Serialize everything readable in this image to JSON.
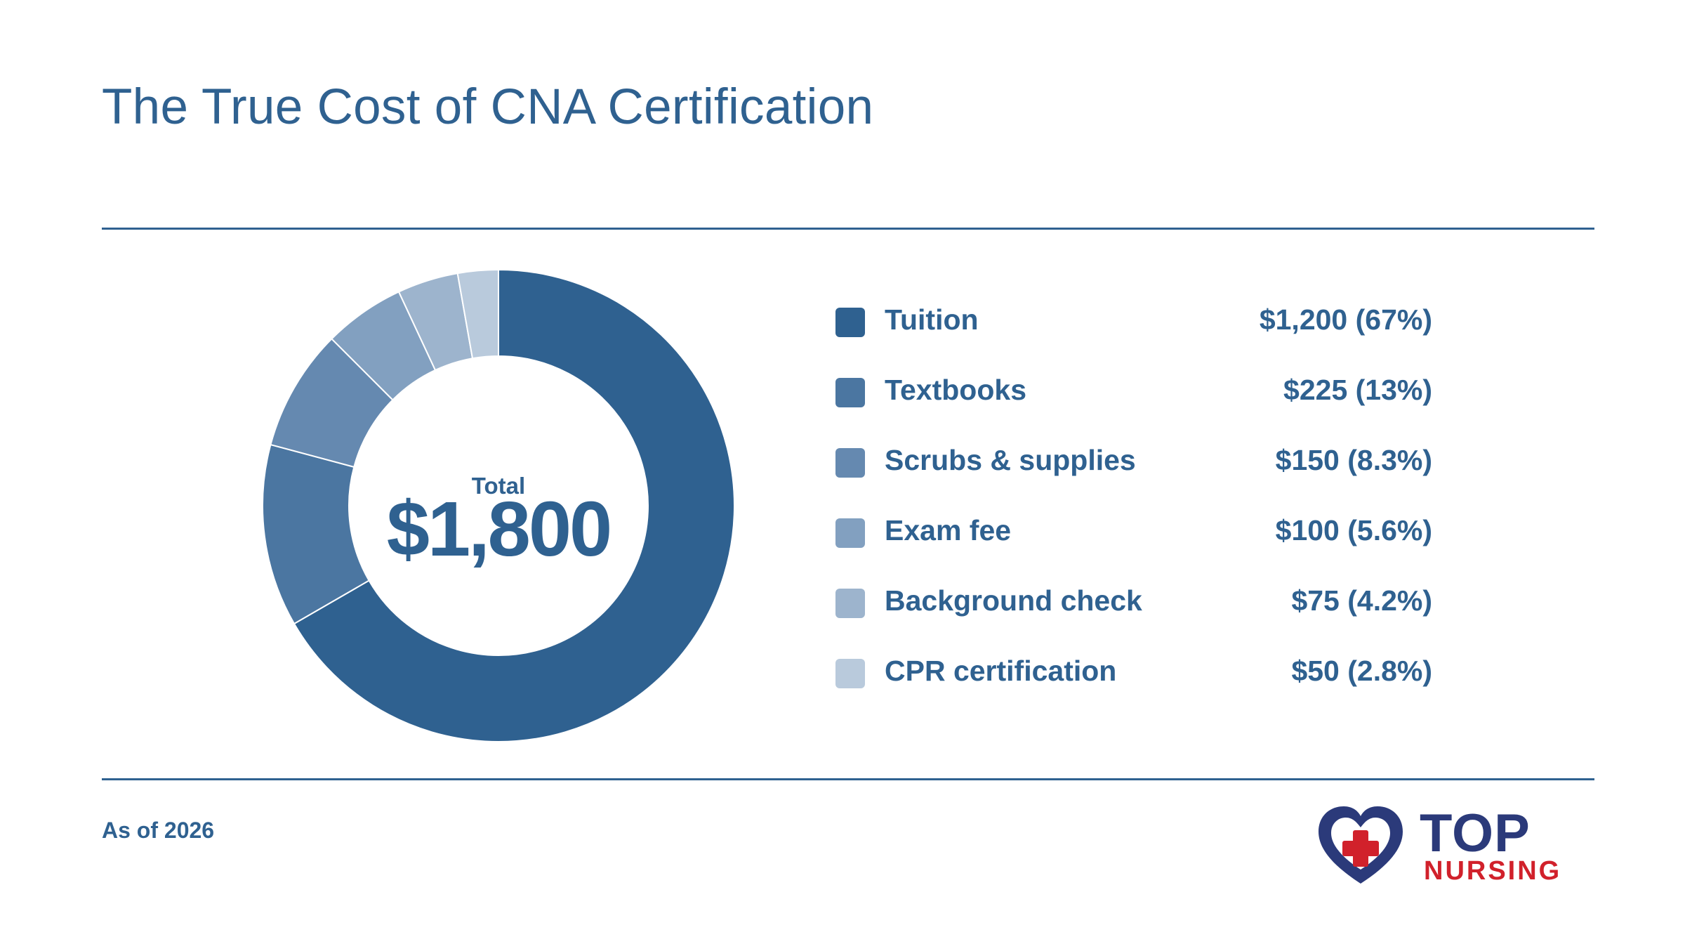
{
  "page": {
    "title": "The True Cost of CNA Certification",
    "footnote": "As of 2026"
  },
  "colors": {
    "accent": "#2f6190",
    "logo_navy": "#2b3a7a",
    "logo_red": "#d1212b"
  },
  "chart_data": {
    "type": "pie",
    "donut": true,
    "center_label": "Total",
    "center_value": "$1,800",
    "total": 1800,
    "slices": [
      {
        "label": "Tuition",
        "value": 1200,
        "value_text": "$1,200 (67%)",
        "color": "#2f6190"
      },
      {
        "label": "Textbooks",
        "value": 225,
        "value_text": "$225 (13%)",
        "color": "#4b76a1"
      },
      {
        "label": "Scrubs & supplies",
        "value": 150,
        "value_text": "$150 (8.3%)",
        "color": "#6589b0"
      },
      {
        "label": "Exam fee",
        "value": 100,
        "value_text": "$100 (5.6%)",
        "color": "#82a0c0"
      },
      {
        "label": "Background check",
        "value": 75,
        "value_text": "$75 (4.2%)",
        "color": "#9db4cd"
      },
      {
        "label": "CPR certification",
        "value": 50,
        "value_text": "$50 (2.8%)",
        "color": "#b9cadc"
      }
    ],
    "legend_position": "right"
  },
  "logo": {
    "name": "Top Nursing",
    "icon": "heart-cross-icon",
    "word1": "TOP",
    "word2": "NURSING"
  }
}
